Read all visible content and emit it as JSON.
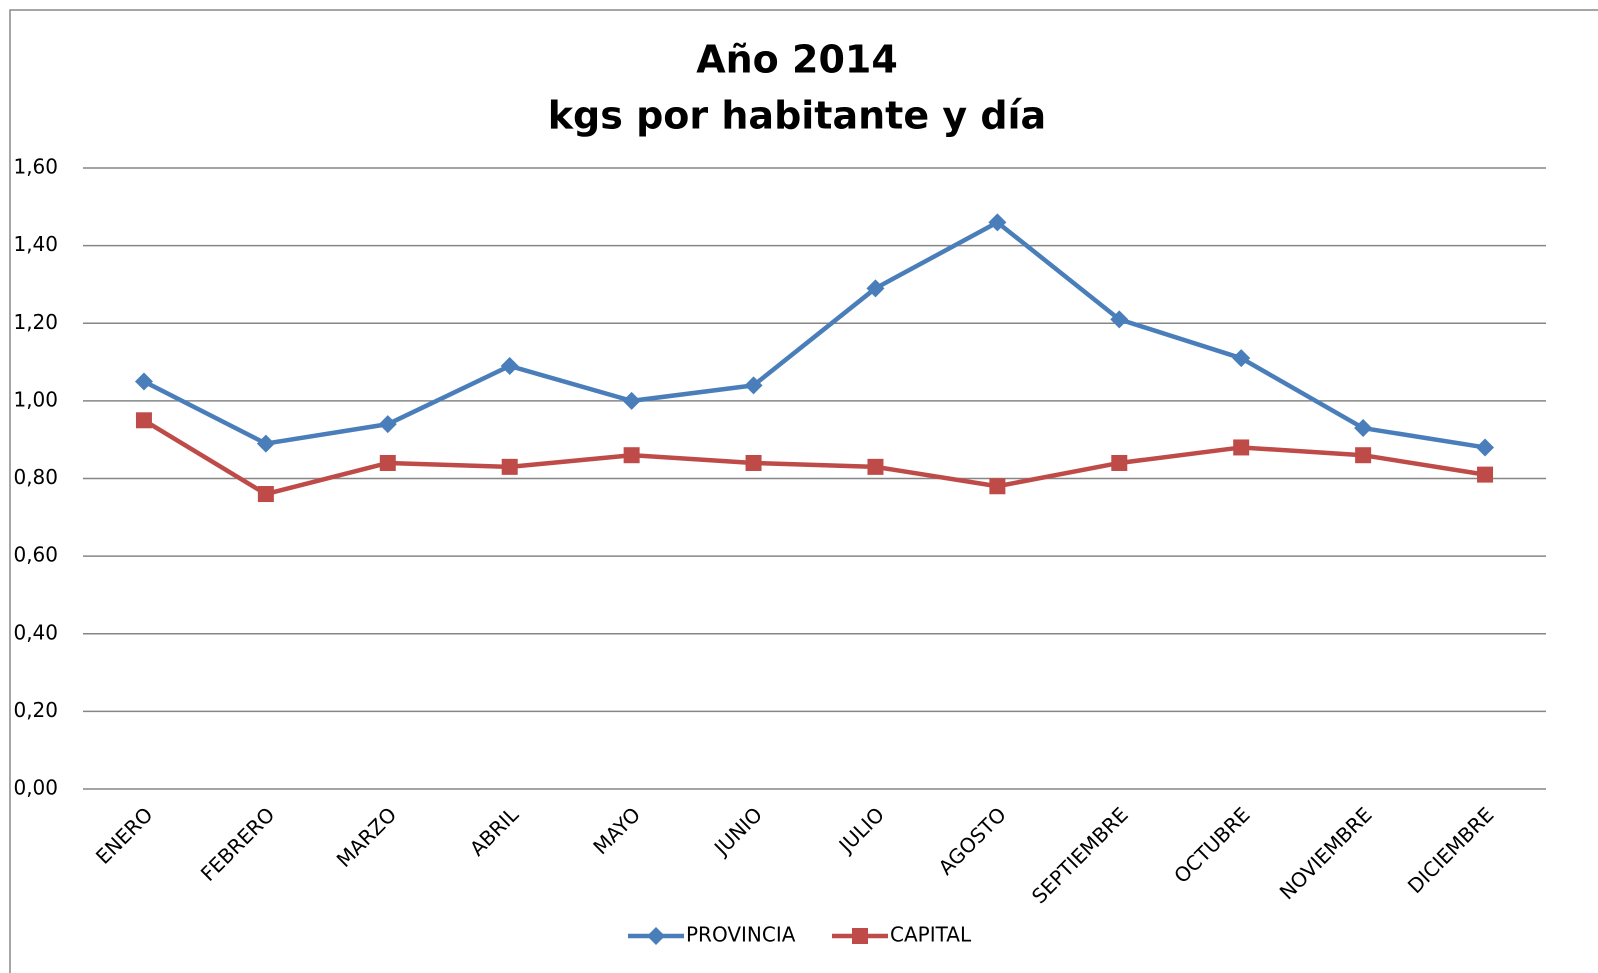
{
  "chart_data": {
    "type": "line",
    "title": "Año 2014",
    "subtitle": "kgs por habitante y día",
    "categories": [
      "ENERO",
      "FEBRERO",
      "MARZO",
      "ABRIL",
      "MAYO",
      "JUNIO",
      "JULIO",
      "AGOSTO",
      "SEPTIEMBRE",
      "OCTUBRE",
      "NOVIEMBRE",
      "DICIEMBRE"
    ],
    "series": [
      {
        "name": "PROVINCIA",
        "color": "#4a7ebb",
        "marker": "diamond",
        "values": [
          1.05,
          0.89,
          0.94,
          1.09,
          1.0,
          1.04,
          1.29,
          1.46,
          1.21,
          1.11,
          0.93,
          0.88
        ]
      },
      {
        "name": "CAPITAL",
        "color": "#be4b48",
        "marker": "square",
        "values": [
          0.95,
          0.76,
          0.84,
          0.83,
          0.86,
          0.84,
          0.83,
          0.78,
          0.84,
          0.88,
          0.86,
          0.81
        ]
      }
    ],
    "ylim": [
      0,
      1.6
    ],
    "yticks": [
      {
        "value": 0,
        "label": "0,00"
      },
      {
        "value": 0.2,
        "label": "0,20"
      },
      {
        "value": 0.4,
        "label": "0,40"
      },
      {
        "value": 0.6,
        "label": "0,60"
      },
      {
        "value": 0.8,
        "label": "0,80"
      },
      {
        "value": 1.0,
        "label": "1,00"
      },
      {
        "value": 1.2,
        "label": "1,20"
      },
      {
        "value": 1.4,
        "label": "1,40"
      },
      {
        "value": 1.6,
        "label": "1,60"
      }
    ],
    "grid": true,
    "legend": "bottom"
  }
}
